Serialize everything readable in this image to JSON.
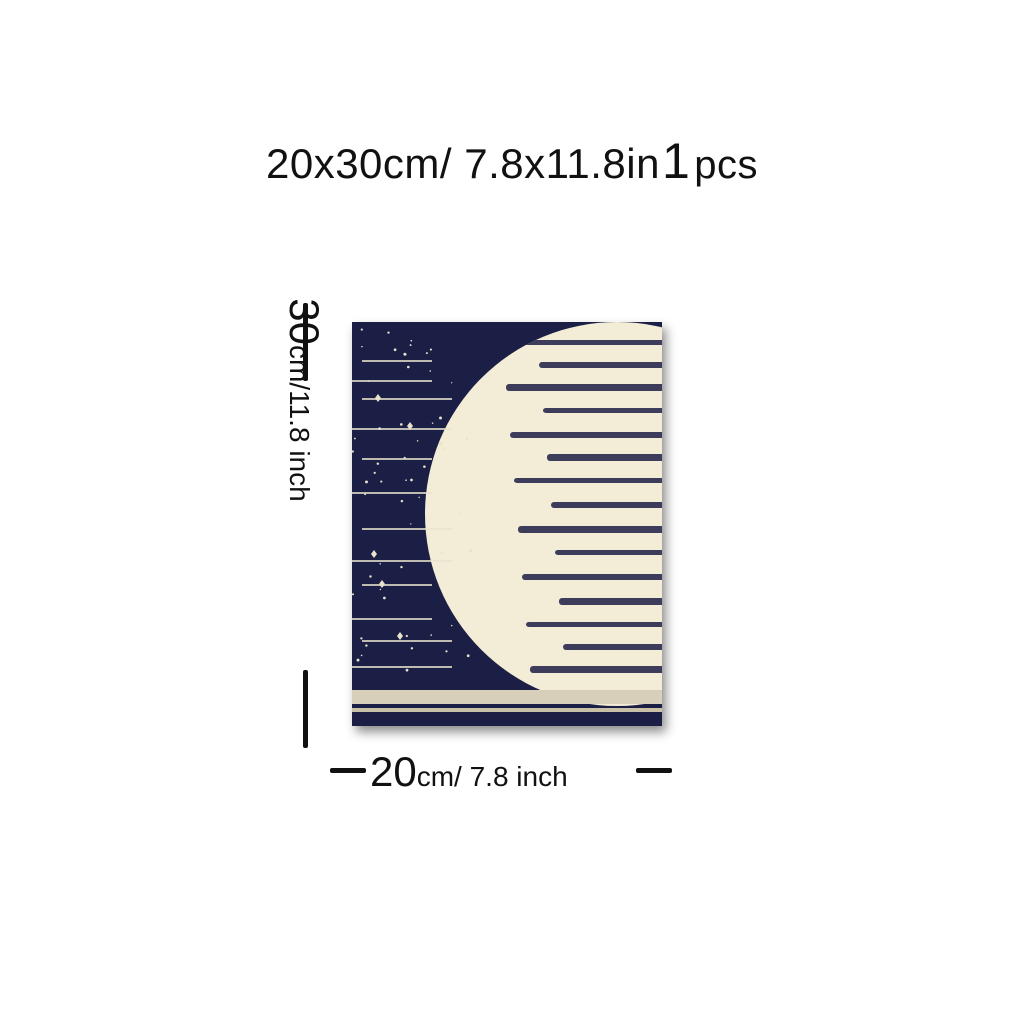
{
  "headline": {
    "size_text": "20x30cm/ 7.8x11.8in",
    "quantity": "1",
    "quantity_unit": "pcs"
  },
  "height_dimension": {
    "value": "30",
    "unit_text": "cm/11.8 inch"
  },
  "width_dimension": {
    "value": "20",
    "unit_text": "cm/ 7.8 inch"
  },
  "artwork": {
    "colors": {
      "sky": "#1c1f45",
      "moon": "#f3ecd6",
      "moon_shadow": "#d9cfb4",
      "stars": "#e8e2cc"
    }
  }
}
